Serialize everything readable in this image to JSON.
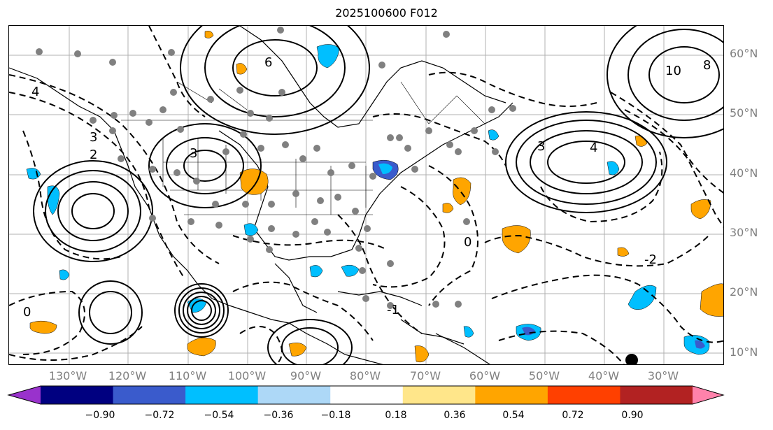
{
  "title": "2025100600 F012",
  "lat_labels": [
    "60°N",
    "50°N",
    "40°N",
    "30°N",
    "20°N",
    "10°N"
  ],
  "lon_labels": [
    "130°W",
    "120°W",
    "110°W",
    "100°W",
    "90°W",
    "80°W",
    "70°W",
    "60°W",
    "50°W",
    "40°W",
    "30°W"
  ],
  "contour_labels": [
    "2",
    "3",
    "4",
    "6",
    "0",
    "-1",
    "-2",
    "10",
    "8"
  ],
  "colorbar": {
    "ticks": [
      "−0.90",
      "−0.72",
      "−0.54",
      "−0.36",
      "−0.18",
      "0.18",
      "0.36",
      "0.54",
      "0.72",
      "0.90"
    ],
    "colors": [
      "#9932cc",
      "#000080",
      "#3a5bcc",
      "#00bfff",
      "#add8f7",
      "#ffffff",
      "#ffe68a",
      "#ffa500",
      "#ff4000",
      "#b22222",
      "#ff82ab"
    ],
    "extend": "both"
  }
}
